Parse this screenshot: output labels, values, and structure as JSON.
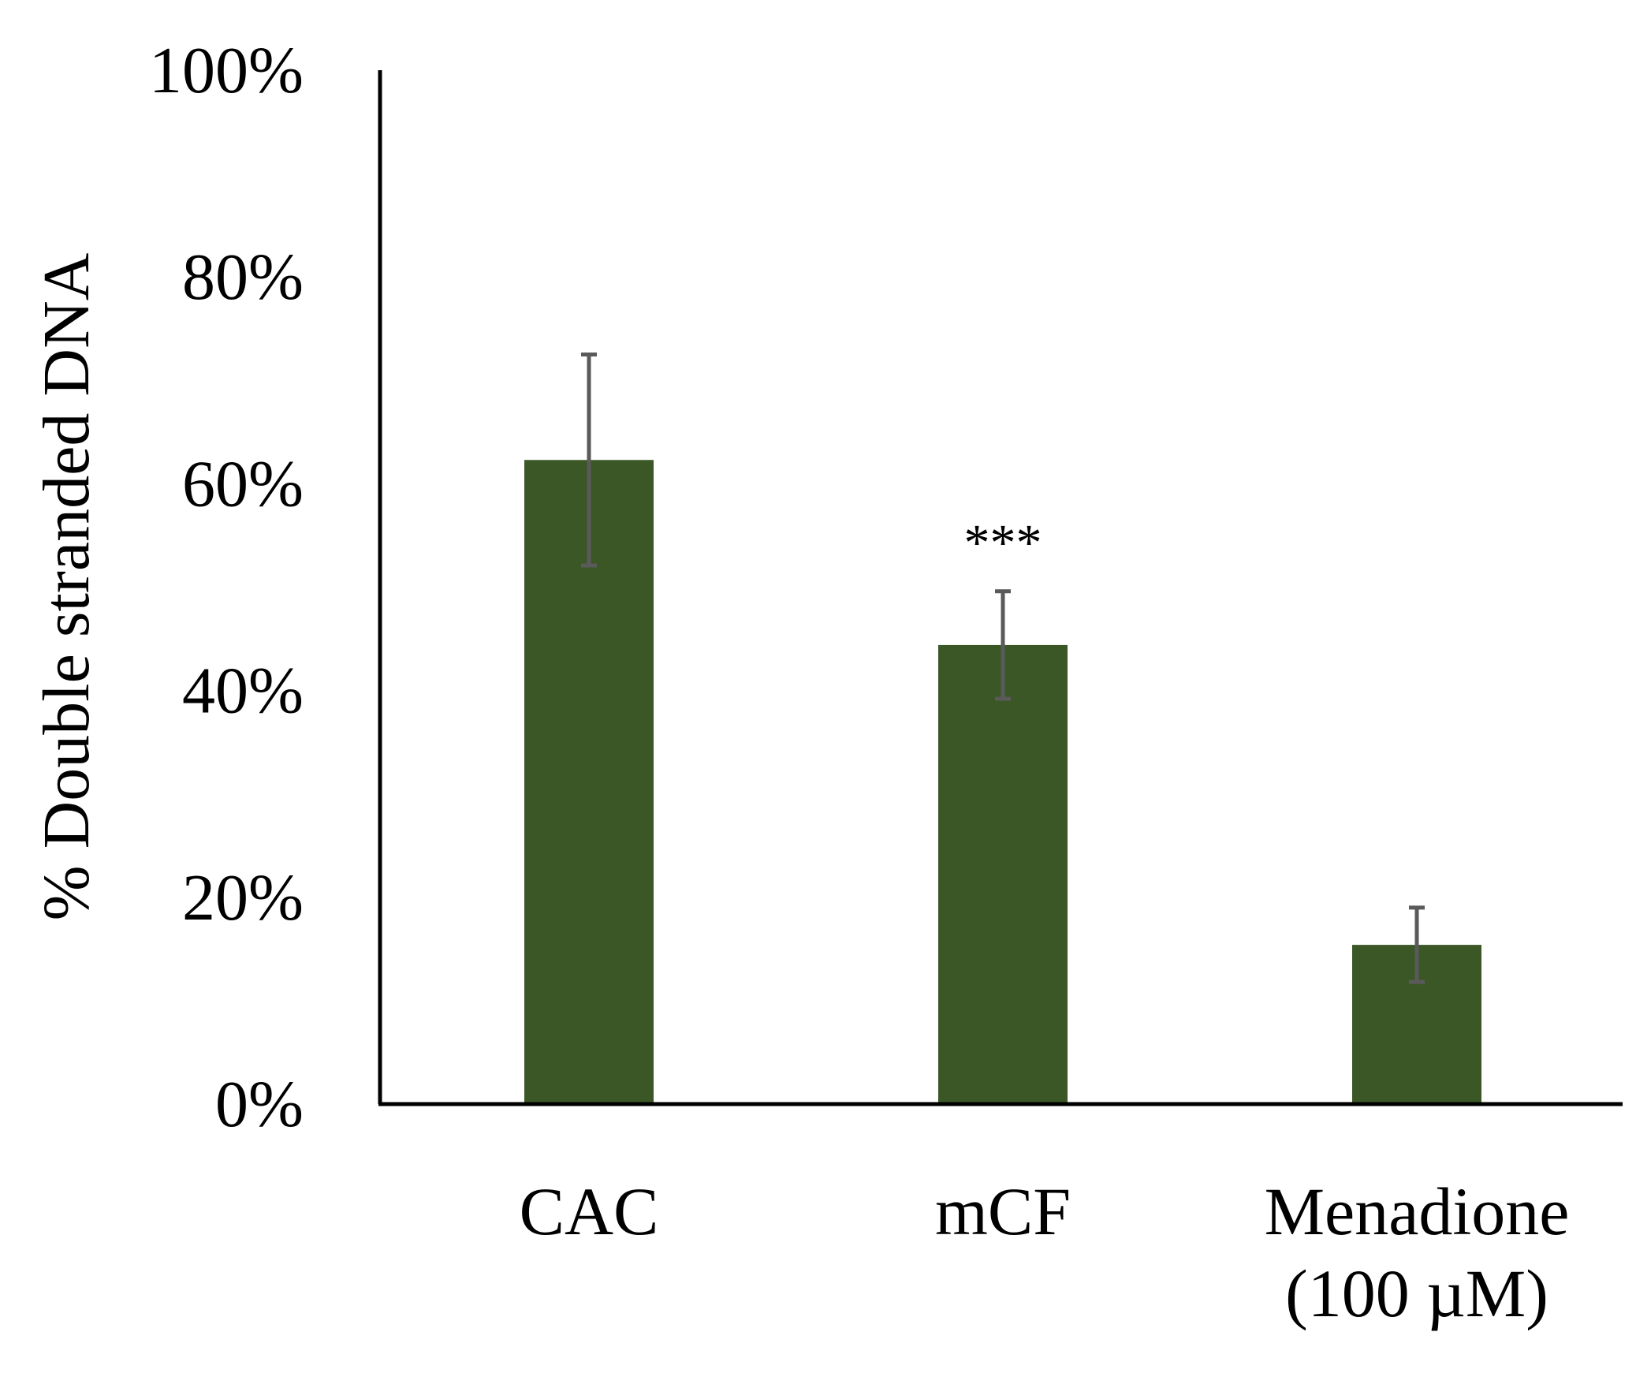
{
  "chart_data": {
    "type": "bar",
    "title": "",
    "xlabel": "",
    "ylabel": "% Double stranded DNA",
    "ylim": [
      0,
      100
    ],
    "y_ticks": [
      "0%",
      "20%",
      "40%",
      "60%",
      "80%",
      "100%"
    ],
    "y_tick_values": [
      0,
      20,
      40,
      60,
      80,
      100
    ],
    "categories": [
      [
        "CAC"
      ],
      [
        "mCF"
      ],
      [
        "Menadione",
        "(100 µM)"
      ]
    ],
    "values": [
      62.3,
      44.4,
      15.4
    ],
    "error": [
      10.2,
      5.2,
      3.6
    ],
    "annotations": [
      {
        "category_index": 1,
        "text": "***",
        "y": 56
      }
    ],
    "grid": false,
    "legend": "none",
    "colors": {
      "bar": "#3b5726",
      "error_bar": "#5a5a5a",
      "axis": "#000000"
    }
  }
}
